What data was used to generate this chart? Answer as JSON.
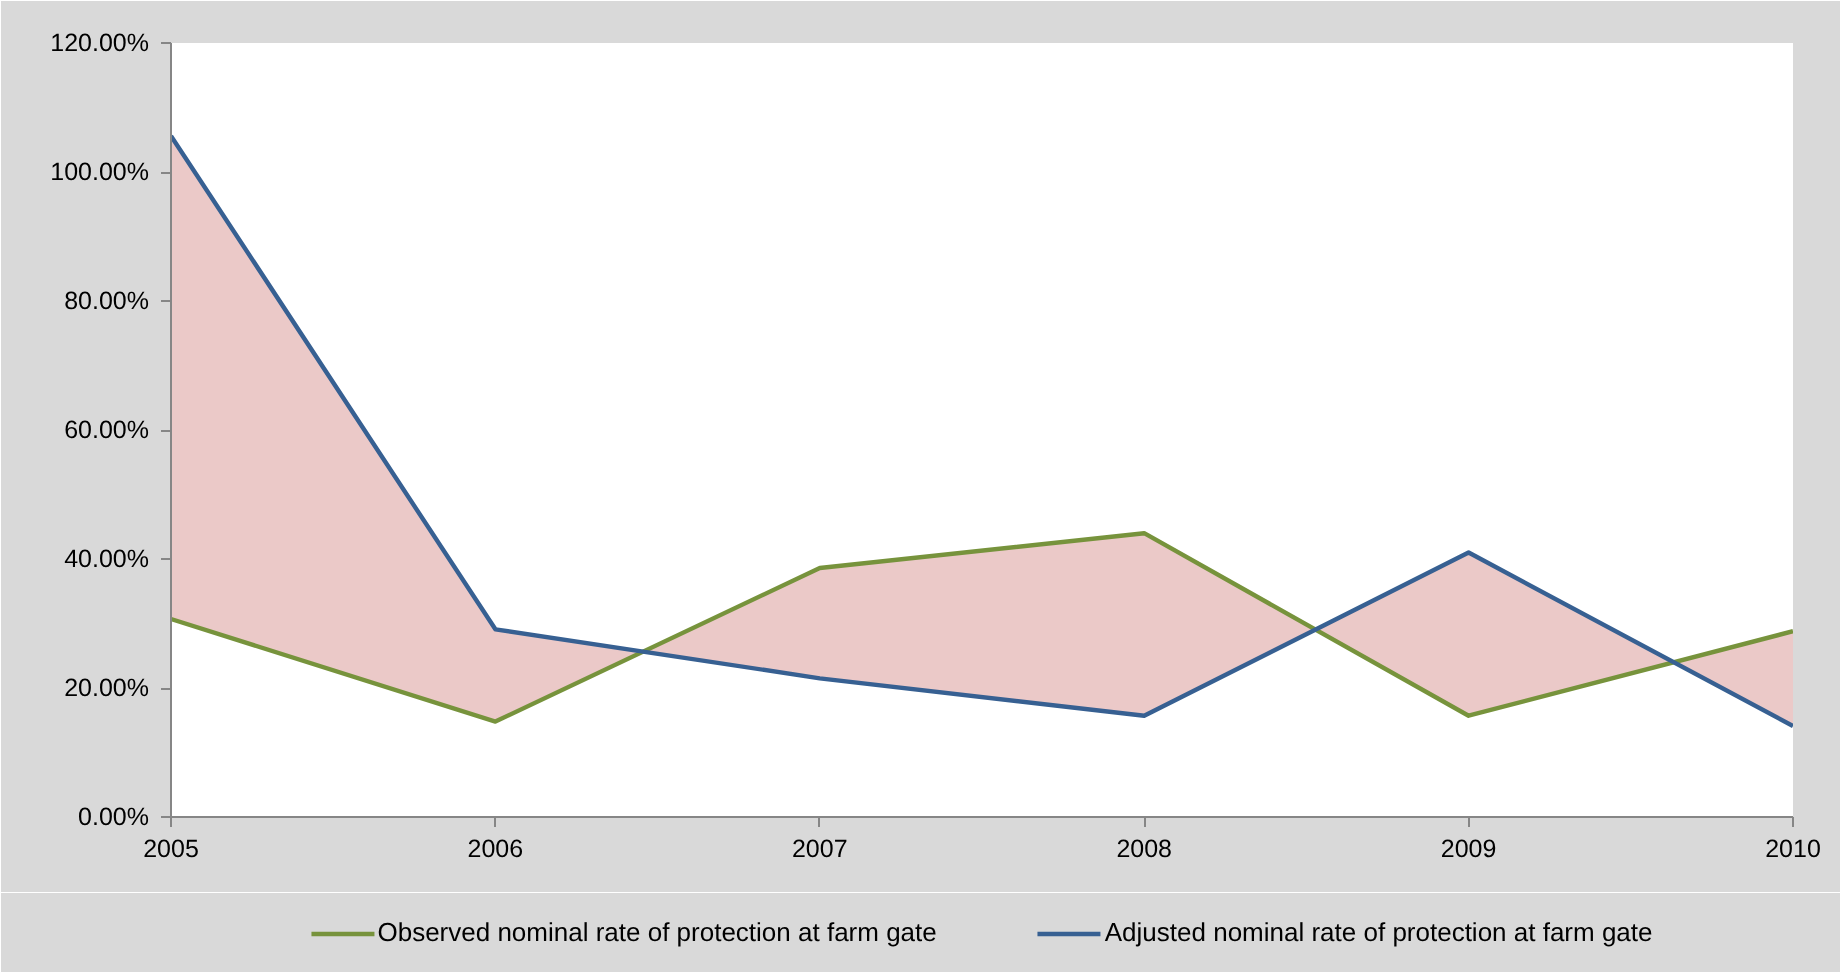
{
  "chart_data": {
    "type": "line",
    "x": [
      2005,
      2006,
      2007,
      2008,
      2009,
      2010
    ],
    "series": [
      {
        "name": "Observed nominal rate of protection at farm gate",
        "color": "#77933c",
        "values": [
          30.7,
          14.8,
          38.6,
          44.0,
          15.7,
          28.8
        ]
      },
      {
        "name": "Adjusted nominal rate of protection at farm gate",
        "color": "#376092",
        "values": [
          105.6,
          29.1,
          21.5,
          15.7,
          41.0,
          14.1
        ],
        "lower": [
          30.7,
          14.8,
          38.6,
          44.0,
          15.7,
          28.8
        ],
        "upper": [
          105.6,
          29.1,
          21.5,
          15.7,
          41.0,
          14.1
        ]
      }
    ],
    "xlim": [
      2005,
      2010
    ],
    "xticks": [
      2005,
      2006,
      2007,
      2008,
      2009,
      2010
    ],
    "ylim": [
      0,
      120
    ],
    "yticks": [
      {
        "value": 0,
        "label": "0.00%"
      },
      {
        "value": 20,
        "label": "20.00%"
      },
      {
        "value": 40,
        "label": "40.00%"
      },
      {
        "value": 60,
        "label": "60.00%"
      },
      {
        "value": 80,
        "label": "80.00%"
      },
      {
        "value": 100,
        "label": "100.00%"
      },
      {
        "value": 120,
        "label": "120.00%"
      }
    ],
    "legend": "bottom"
  }
}
